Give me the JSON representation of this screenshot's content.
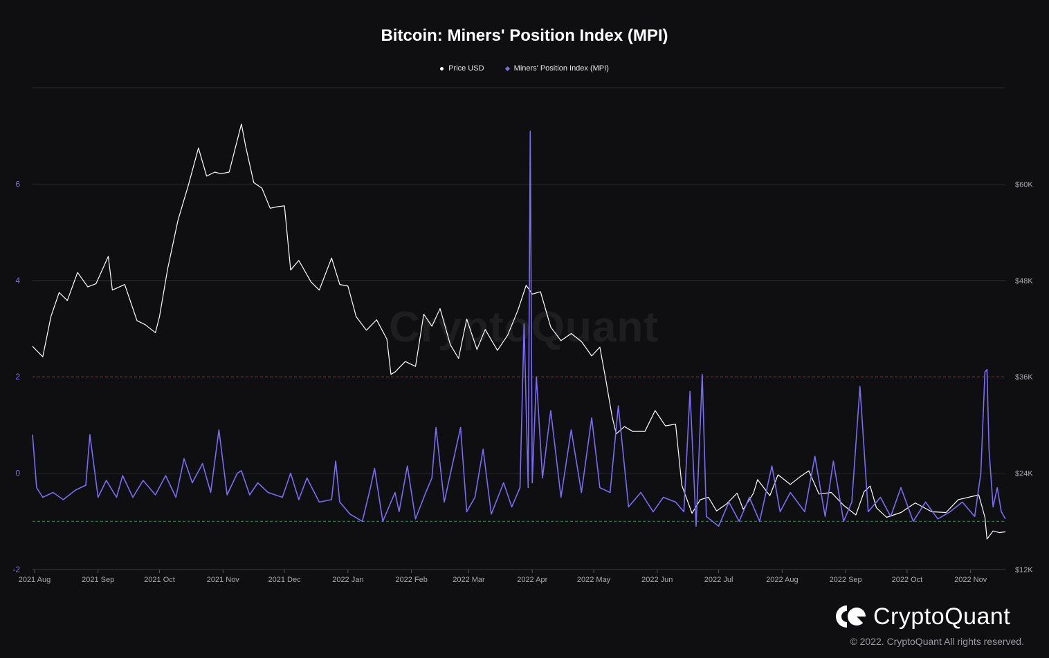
{
  "chart_data": {
    "type": "line",
    "title": "Bitcoin: Miners' Position Index (MPI)",
    "legend": [
      "Price USD",
      "Miners' Position Index (MPI)"
    ],
    "legend_position": "top-center",
    "x_tick_labels": [
      "2021 Aug",
      "2021 Sep",
      "2021 Oct",
      "2021 Nov",
      "2021 Dec",
      "2022 Jan",
      "2022 Feb",
      "2022 Mar",
      "2022 Apr",
      "2022 May",
      "2022 Jun",
      "2022 Jul",
      "2022 Aug",
      "2022 Sep",
      "2022 Oct",
      "2022 Nov"
    ],
    "x_range": [
      "2021-07-31",
      "2022-11-18"
    ],
    "left_axis": {
      "label": "",
      "ticks": [
        "6",
        "4",
        "2",
        "0",
        "-2"
      ],
      "range": [
        -2,
        8
      ]
    },
    "right_axis": {
      "label": "",
      "ticks": [
        "$60K",
        "$48K",
        "$36K",
        "$24K",
        "$12K"
      ],
      "range": [
        12000,
        72000
      ]
    },
    "grid": true,
    "reference_lines": [
      {
        "value": 2,
        "color": "#c0392b",
        "style": "dashed",
        "axis": "left"
      },
      {
        "value": -1,
        "color": "#27ae60",
        "style": "dashed",
        "axis": "left"
      }
    ],
    "series": [
      {
        "name": "Price USD",
        "axis": "right",
        "color": "#ffffff",
        "points": [
          [
            "2021-07-31",
            39800
          ],
          [
            "2021-08-05",
            38500
          ],
          [
            "2021-08-09",
            43500
          ],
          [
            "2021-08-13",
            46500
          ],
          [
            "2021-08-17",
            45500
          ],
          [
            "2021-08-22",
            49000
          ],
          [
            "2021-08-27",
            47200
          ],
          [
            "2021-08-31",
            47600
          ],
          [
            "2021-09-06",
            51000
          ],
          [
            "2021-09-08",
            46800
          ],
          [
            "2021-09-14",
            47500
          ],
          [
            "2021-09-20",
            43000
          ],
          [
            "2021-09-24",
            42500
          ],
          [
            "2021-09-29",
            41500
          ],
          [
            "2021-10-01",
            43500
          ],
          [
            "2021-10-05",
            49500
          ],
          [
            "2021-10-10",
            55500
          ],
          [
            "2021-10-15",
            59800
          ],
          [
            "2021-10-20",
            64500
          ],
          [
            "2021-10-24",
            61000
          ],
          [
            "2021-10-28",
            61500
          ],
          [
            "2021-10-31",
            61300
          ],
          [
            "2021-11-04",
            61500
          ],
          [
            "2021-11-10",
            67500
          ],
          [
            "2021-11-12",
            64800
          ],
          [
            "2021-11-16",
            60200
          ],
          [
            "2021-11-20",
            59500
          ],
          [
            "2021-11-24",
            57000
          ],
          [
            "2021-11-28",
            57200
          ],
          [
            "2021-12-01",
            57300
          ],
          [
            "2021-12-04",
            49300
          ],
          [
            "2021-12-08",
            50500
          ],
          [
            "2021-12-14",
            47800
          ],
          [
            "2021-12-18",
            46800
          ],
          [
            "2021-12-24",
            50800
          ],
          [
            "2021-12-28",
            47500
          ],
          [
            "2022-01-01",
            47300
          ],
          [
            "2022-01-05",
            43500
          ],
          [
            "2022-01-10",
            41800
          ],
          [
            "2022-01-15",
            43100
          ],
          [
            "2022-01-20",
            40700
          ],
          [
            "2022-01-22",
            36300
          ],
          [
            "2022-01-24",
            36600
          ],
          [
            "2022-01-29",
            37900
          ],
          [
            "2022-02-03",
            37300
          ],
          [
            "2022-02-07",
            43800
          ],
          [
            "2022-02-11",
            42300
          ],
          [
            "2022-02-15",
            44500
          ],
          [
            "2022-02-20",
            40000
          ],
          [
            "2022-02-24",
            38300
          ],
          [
            "2022-02-28",
            43200
          ],
          [
            "2022-03-05",
            39400
          ],
          [
            "2022-03-09",
            41900
          ],
          [
            "2022-03-15",
            39300
          ],
          [
            "2022-03-20",
            41200
          ],
          [
            "2022-03-25",
            44300
          ],
          [
            "2022-03-29",
            47400
          ],
          [
            "2022-04-01",
            46300
          ],
          [
            "2022-04-05",
            46600
          ],
          [
            "2022-04-10",
            42200
          ],
          [
            "2022-04-15",
            40500
          ],
          [
            "2022-04-20",
            41400
          ],
          [
            "2022-04-25",
            40400
          ],
          [
            "2022-04-30",
            38600
          ],
          [
            "2022-05-04",
            39700
          ],
          [
            "2022-05-07",
            35500
          ],
          [
            "2022-05-10",
            31000
          ],
          [
            "2022-05-12",
            28900
          ],
          [
            "2022-05-16",
            29800
          ],
          [
            "2022-05-20",
            29200
          ],
          [
            "2022-05-26",
            29200
          ],
          [
            "2022-05-31",
            31800
          ],
          [
            "2022-06-05",
            29900
          ],
          [
            "2022-06-10",
            30100
          ],
          [
            "2022-06-13",
            22500
          ],
          [
            "2022-06-18",
            19000
          ],
          [
            "2022-06-22",
            20700
          ],
          [
            "2022-06-26",
            21000
          ],
          [
            "2022-06-30",
            19300
          ],
          [
            "2022-07-05",
            20200
          ],
          [
            "2022-07-10",
            21500
          ],
          [
            "2022-07-13",
            19500
          ],
          [
            "2022-07-18",
            21500
          ],
          [
            "2022-07-20",
            23200
          ],
          [
            "2022-07-26",
            21200
          ],
          [
            "2022-07-30",
            23800
          ],
          [
            "2022-08-05",
            22600
          ],
          [
            "2022-08-10",
            23600
          ],
          [
            "2022-08-14",
            24300
          ],
          [
            "2022-08-19",
            21400
          ],
          [
            "2022-08-25",
            21600
          ],
          [
            "2022-08-31",
            20000
          ],
          [
            "2022-09-06",
            18800
          ],
          [
            "2022-09-10",
            21700
          ],
          [
            "2022-09-13",
            22400
          ],
          [
            "2022-09-16",
            19700
          ],
          [
            "2022-09-21",
            18500
          ],
          [
            "2022-09-28",
            19100
          ],
          [
            "2022-10-05",
            20300
          ],
          [
            "2022-10-13",
            19200
          ],
          [
            "2022-10-20",
            19100
          ],
          [
            "2022-10-26",
            20700
          ],
          [
            "2022-11-05",
            21300
          ],
          [
            "2022-11-08",
            18500
          ],
          [
            "2022-11-09",
            15800
          ],
          [
            "2022-11-12",
            16800
          ],
          [
            "2022-11-15",
            16600
          ],
          [
            "2022-11-18",
            16700
          ]
        ]
      },
      {
        "name": "Miners' Position Index (MPI)",
        "axis": "left",
        "color": "#7b6cf6",
        "points": [
          [
            "2021-07-31",
            0.8
          ],
          [
            "2021-08-02",
            -0.3
          ],
          [
            "2021-08-05",
            -0.5
          ],
          [
            "2021-08-10",
            -0.4
          ],
          [
            "2021-08-15",
            -0.55
          ],
          [
            "2021-08-21",
            -0.35
          ],
          [
            "2021-08-26",
            -0.25
          ],
          [
            "2021-08-28",
            0.8
          ],
          [
            "2021-09-01",
            -0.5
          ],
          [
            "2021-09-05",
            -0.15
          ],
          [
            "2021-09-10",
            -0.5
          ],
          [
            "2021-09-13",
            -0.05
          ],
          [
            "2021-09-18",
            -0.5
          ],
          [
            "2021-09-23",
            -0.15
          ],
          [
            "2021-09-29",
            -0.45
          ],
          [
            "2021-10-04",
            -0.05
          ],
          [
            "2021-10-09",
            -0.5
          ],
          [
            "2021-10-13",
            0.3
          ],
          [
            "2021-10-17",
            -0.2
          ],
          [
            "2021-10-22",
            0.2
          ],
          [
            "2021-10-26",
            -0.4
          ],
          [
            "2021-10-30",
            0.9
          ],
          [
            "2021-11-03",
            -0.45
          ],
          [
            "2021-11-08",
            0.0
          ],
          [
            "2021-11-10",
            0.05
          ],
          [
            "2021-11-14",
            -0.45
          ],
          [
            "2021-11-18",
            -0.2
          ],
          [
            "2021-11-23",
            -0.4
          ],
          [
            "2021-11-30",
            -0.5
          ],
          [
            "2021-12-04",
            0.0
          ],
          [
            "2021-12-08",
            -0.55
          ],
          [
            "2021-12-12",
            -0.1
          ],
          [
            "2021-12-18",
            -0.6
          ],
          [
            "2021-12-24",
            -0.55
          ],
          [
            "2021-12-26",
            0.25
          ],
          [
            "2021-12-28",
            -0.6
          ],
          [
            "2022-01-02",
            -0.85
          ],
          [
            "2022-01-08",
            -1.0
          ],
          [
            "2022-01-12",
            -0.3
          ],
          [
            "2022-01-14",
            0.1
          ],
          [
            "2022-01-18",
            -1.0
          ],
          [
            "2022-01-24",
            -0.4
          ],
          [
            "2022-01-26",
            -0.8
          ],
          [
            "2022-01-30",
            0.15
          ],
          [
            "2022-02-03",
            -0.95
          ],
          [
            "2022-02-08",
            -0.4
          ],
          [
            "2022-02-11",
            -0.1
          ],
          [
            "2022-02-13",
            0.95
          ],
          [
            "2022-02-17",
            -0.6
          ],
          [
            "2022-02-25",
            0.95
          ],
          [
            "2022-02-28",
            -0.8
          ],
          [
            "2022-03-04",
            -0.5
          ],
          [
            "2022-03-08",
            0.5
          ],
          [
            "2022-03-12",
            -0.85
          ],
          [
            "2022-03-18",
            -0.2
          ],
          [
            "2022-03-22",
            -0.7
          ],
          [
            "2022-03-26",
            -0.3
          ],
          [
            "2022-03-28",
            3.1
          ],
          [
            "2022-03-30",
            -0.3
          ],
          [
            "2022-03-31",
            7.1
          ],
          [
            "2022-04-01",
            -0.2
          ],
          [
            "2022-04-03",
            2.0
          ],
          [
            "2022-04-06",
            -0.1
          ],
          [
            "2022-04-10",
            1.3
          ],
          [
            "2022-04-15",
            -0.5
          ],
          [
            "2022-04-20",
            0.9
          ],
          [
            "2022-04-25",
            -0.4
          ],
          [
            "2022-04-30",
            1.15
          ],
          [
            "2022-05-04",
            -0.3
          ],
          [
            "2022-05-09",
            -0.4
          ],
          [
            "2022-05-13",
            1.4
          ],
          [
            "2022-05-18",
            -0.7
          ],
          [
            "2022-05-24",
            -0.4
          ],
          [
            "2022-05-30",
            -0.8
          ],
          [
            "2022-06-04",
            -0.5
          ],
          [
            "2022-06-10",
            -0.6
          ],
          [
            "2022-06-14",
            -0.8
          ],
          [
            "2022-06-17",
            1.7
          ],
          [
            "2022-06-20",
            -1.1
          ],
          [
            "2022-06-23",
            2.05
          ],
          [
            "2022-06-25",
            -0.9
          ],
          [
            "2022-07-01",
            -1.1
          ],
          [
            "2022-07-06",
            -0.6
          ],
          [
            "2022-07-11",
            -1.0
          ],
          [
            "2022-07-16",
            -0.5
          ],
          [
            "2022-07-21",
            -1.0
          ],
          [
            "2022-07-27",
            0.15
          ],
          [
            "2022-07-31",
            -0.8
          ],
          [
            "2022-08-05",
            -0.4
          ],
          [
            "2022-08-12",
            -0.8
          ],
          [
            "2022-08-17",
            0.35
          ],
          [
            "2022-08-22",
            -0.9
          ],
          [
            "2022-08-26",
            0.25
          ],
          [
            "2022-08-31",
            -1.0
          ],
          [
            "2022-09-04",
            -0.6
          ],
          [
            "2022-09-08",
            1.8
          ],
          [
            "2022-09-12",
            -0.8
          ],
          [
            "2022-09-18",
            -0.5
          ],
          [
            "2022-09-23",
            -0.9
          ],
          [
            "2022-09-28",
            -0.3
          ],
          [
            "2022-10-04",
            -1.0
          ],
          [
            "2022-10-10",
            -0.6
          ],
          [
            "2022-10-16",
            -0.95
          ],
          [
            "2022-10-22",
            -0.8
          ],
          [
            "2022-10-28",
            -0.6
          ],
          [
            "2022-11-03",
            -0.9
          ],
          [
            "2022-11-06",
            0.0
          ],
          [
            "2022-11-08",
            2.1
          ],
          [
            "2022-11-09",
            2.15
          ],
          [
            "2022-11-10",
            0.5
          ],
          [
            "2022-11-12",
            -0.7
          ],
          [
            "2022-11-14",
            -0.3
          ],
          [
            "2022-11-16",
            -0.8
          ],
          [
            "2022-11-18",
            -0.95
          ]
        ]
      }
    ]
  },
  "branding": {
    "watermark": "CryptoQuant",
    "brand_name": "CryptoQuant",
    "copyright": "© 2022. CryptoQuant All rights reserved."
  }
}
